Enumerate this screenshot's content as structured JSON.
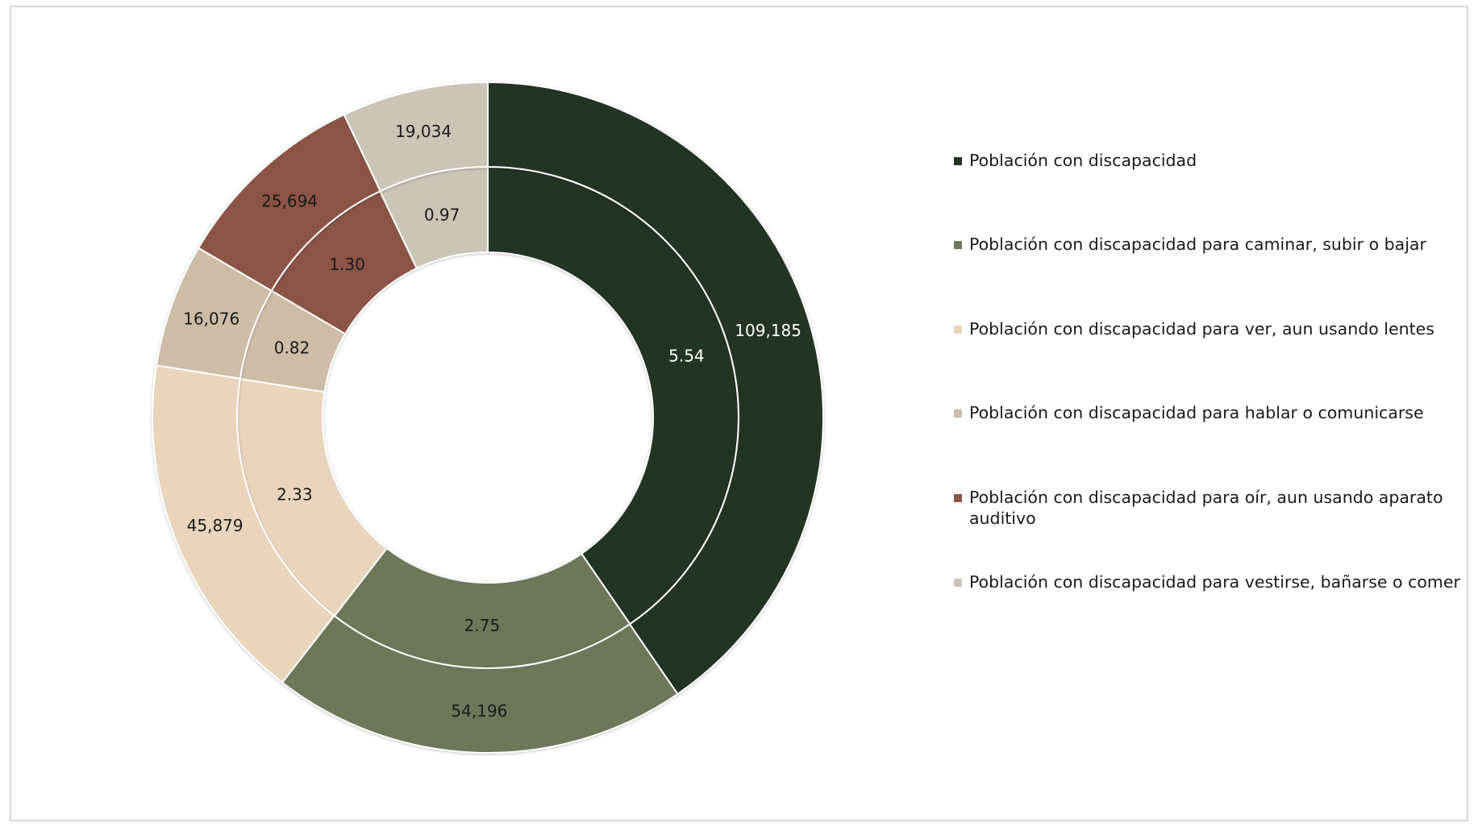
{
  "chart_data": {
    "type": "donut",
    "rings": [
      {
        "name": "inner",
        "values": [
          5.54,
          2.75,
          2.33,
          0.82,
          1.3,
          0.97
        ],
        "labels": [
          "5.54",
          "2.75",
          "2.33",
          "0.82",
          "1.30",
          "0.97"
        ]
      },
      {
        "name": "outer",
        "values": [
          109185,
          54196,
          45879,
          16076,
          25694,
          19034
        ],
        "labels": [
          "109,185",
          "54,196",
          "45,879",
          "16,076",
          "25,694",
          "19,034"
        ]
      }
    ],
    "categories": [
      "Población con discapacidad",
      "Población con discapacidad para caminar, subir o bajar",
      "Población con discapacidad para ver, aun usando lentes",
      "Población con discapacidad para hablar o comunicarse",
      "Población con discapacidad para oír, aun usando aparato auditivo",
      "Población con discapacidad para vestirse, bañarse o comer"
    ],
    "colors": [
      "#213421",
      "#6e775a",
      "#e8d5bc",
      "#cdbca6",
      "#8a5546",
      "#cbc5b6"
    ],
    "label_colors": [
      "#ffffff",
      "#1a1a1a",
      "#1a1a1a",
      "#1a1a1a",
      "#1a1a1a",
      "#1a1a1a"
    ],
    "legend_position": "right"
  }
}
